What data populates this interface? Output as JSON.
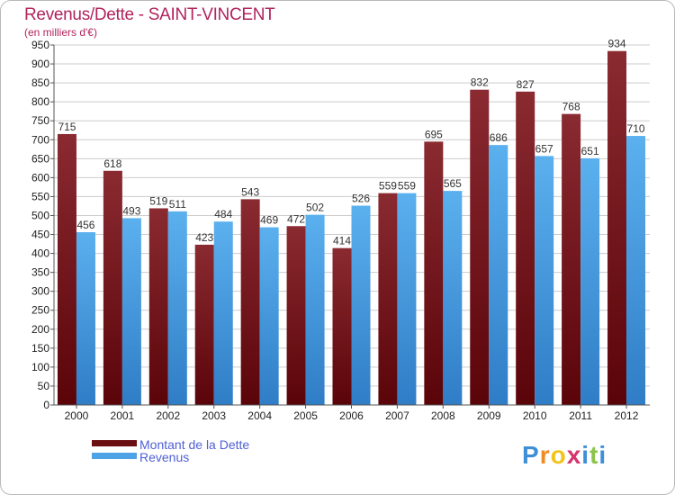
{
  "title": "Revenus/Dette - SAINT-VINCENT",
  "subtitle": "(en milliers d'€)",
  "colors": {
    "title": "#b0245c",
    "dette": "#7a1c22",
    "revenus": "#4da3e6",
    "grid": "#cccccc",
    "legend_text": "#4f5fd6"
  },
  "legend": [
    {
      "label": "Montant de la Dette",
      "color": "#6b0f12"
    },
    {
      "label": "Revenus",
      "color": "#4da3e6"
    }
  ],
  "logo": {
    "letters": [
      {
        "char": "P",
        "color": "#3d8fd8"
      },
      {
        "char": "r",
        "color": "#f08a24"
      },
      {
        "char": "o",
        "color": "#f2c31b"
      },
      {
        "char": "x",
        "color": "#d6336c"
      },
      {
        "char": "i",
        "color": "#3d8fd8"
      },
      {
        "char": "t",
        "color": "#8bc34a"
      },
      {
        "char": "i",
        "color": "#3d8fd8"
      }
    ]
  },
  "chart_data": {
    "type": "bar",
    "title": "Revenus/Dette - SAINT-VINCENT",
    "ylabel": "(en milliers d'€)",
    "xlabel": "",
    "ylim": [
      0,
      950
    ],
    "yticks": [
      0,
      50,
      100,
      150,
      200,
      250,
      300,
      350,
      400,
      450,
      500,
      550,
      600,
      650,
      700,
      750,
      800,
      850,
      900,
      950
    ],
    "grid": true,
    "categories": [
      "2000",
      "2001",
      "2002",
      "2003",
      "2004",
      "2005",
      "2006",
      "2007",
      "2008",
      "2009",
      "2010",
      "2011",
      "2012"
    ],
    "series": [
      {
        "name": "Montant de la Dette",
        "values": [
          715,
          618,
          519,
          423,
          543,
          472,
          414,
          559,
          695,
          832,
          827,
          768,
          934
        ]
      },
      {
        "name": "Revenus",
        "values": [
          456,
          493,
          511,
          484,
          469,
          502,
          526,
          559,
          565,
          686,
          657,
          651,
          710
        ]
      }
    ]
  }
}
